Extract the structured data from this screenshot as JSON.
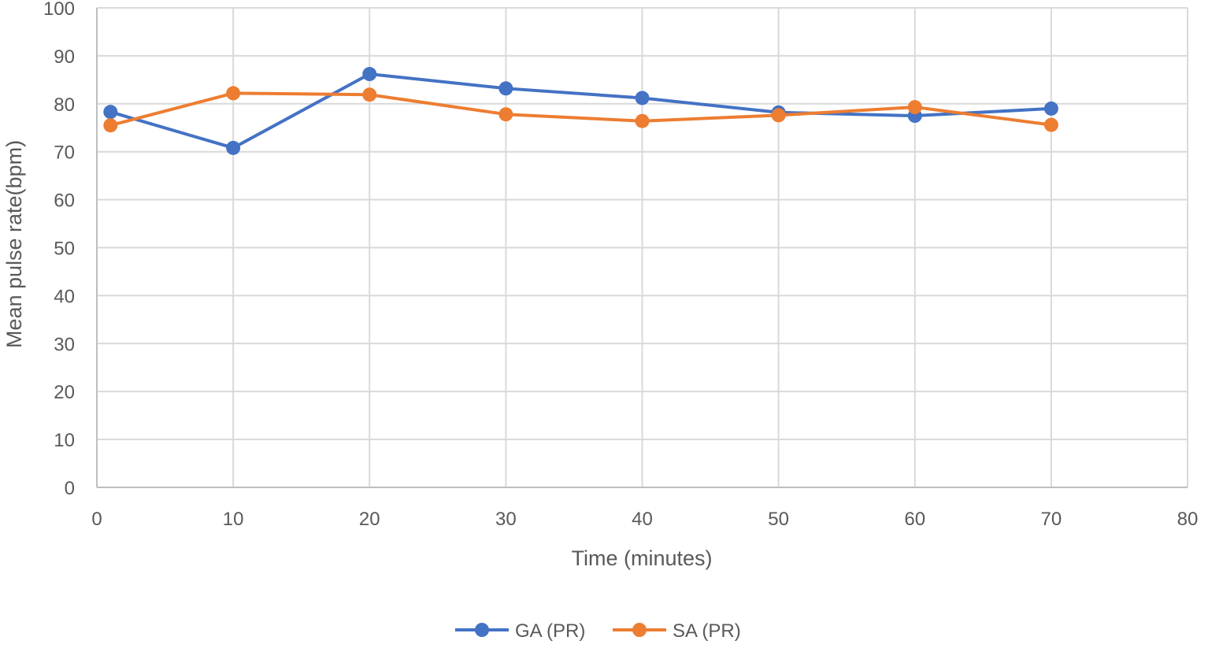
{
  "chart_data": {
    "type": "line",
    "title": "",
    "xlabel": "Time (minutes)",
    "ylabel": "Mean pulse rate(bpm)",
    "xlim": [
      0,
      80
    ],
    "ylim": [
      0,
      100
    ],
    "x_ticks": [
      "0",
      "10",
      "20",
      "30",
      "40",
      "50",
      "60",
      "70",
      "80"
    ],
    "y_ticks": [
      "0",
      "10",
      "20",
      "30",
      "40",
      "50",
      "60",
      "70",
      "80",
      "90",
      "100"
    ],
    "grid": true,
    "legend_position": "bottom",
    "x": [
      1,
      10,
      20,
      30,
      40,
      50,
      60,
      70
    ],
    "series": [
      {
        "name": "GA (PR)",
        "color": "#4472C4",
        "values": [
          78.3,
          70.8,
          86.2,
          83.2,
          81.2,
          78.2,
          77.5,
          79.0
        ]
      },
      {
        "name": "SA (PR)",
        "color": "#ED7D31",
        "values": [
          75.5,
          82.2,
          81.9,
          77.8,
          76.4,
          77.6,
          79.3,
          75.6
        ]
      }
    ]
  }
}
